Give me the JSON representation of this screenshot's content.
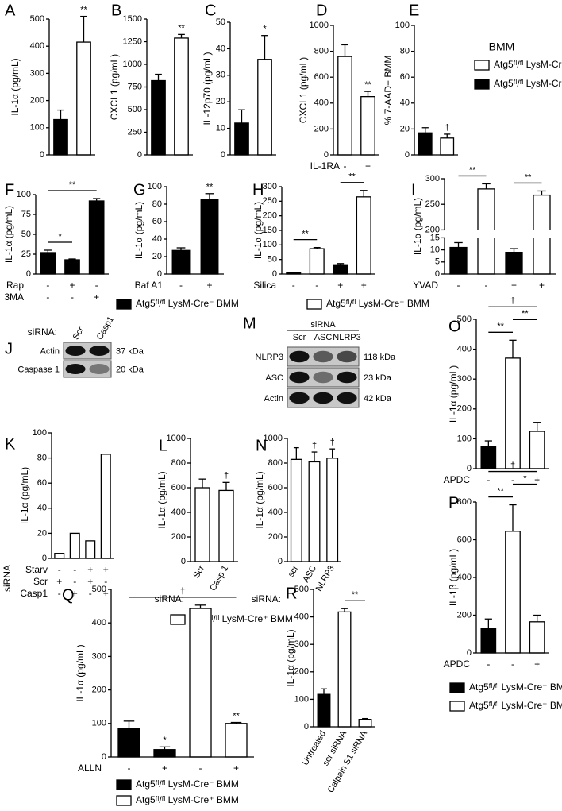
{
  "chart_data": [
    {
      "type": "bar",
      "panel": "A",
      "ylabel": "IL-1α (pg/mL)",
      "ylim": [
        0,
        500
      ],
      "yticks": [
        0,
        100,
        200,
        300,
        400,
        500
      ],
      "bars": [
        {
          "value": 130,
          "error": 35,
          "color": "#000000"
        },
        {
          "value": 415,
          "error": 95,
          "color": "#ffffff",
          "label": "**"
        }
      ]
    },
    {
      "type": "bar",
      "panel": "B",
      "ylabel": "CXCL1 (pg/mL)",
      "ylim": [
        0,
        1500
      ],
      "yticks": [
        0,
        250,
        500,
        750,
        1000,
        1250,
        1500
      ],
      "bars": [
        {
          "value": 820,
          "error": 70,
          "color": "#000000"
        },
        {
          "value": 1290,
          "error": 40,
          "color": "#ffffff",
          "label": "**"
        }
      ]
    },
    {
      "type": "bar",
      "panel": "C",
      "ylabel": "IL-12p70 (pg/mL)",
      "ylim": [
        0,
        50
      ],
      "yticks": [
        0,
        10,
        20,
        30,
        40,
        50
      ],
      "bars": [
        {
          "value": 12,
          "error": 5,
          "color": "#000000"
        },
        {
          "value": 36,
          "error": 9,
          "color": "#ffffff",
          "label": "*"
        }
      ]
    },
    {
      "type": "bar",
      "panel": "D",
      "ylabel": "CXCL1 (pg/mL)",
      "ylim": [
        0,
        1000
      ],
      "yticks": [
        0,
        200,
        400,
        600,
        800,
        1000
      ],
      "bars": [
        {
          "value": 760,
          "error": 90,
          "color": "#ffffff"
        },
        {
          "value": 450,
          "error": 40,
          "color": "#ffffff",
          "label": "**"
        }
      ],
      "conditions": [
        {
          "label": "IL-1RA",
          "signs": [
            "-",
            "+"
          ]
        }
      ]
    },
    {
      "type": "bar",
      "panel": "E",
      "ylabel": "% 7-AAD+ BMM",
      "ylim": [
        0,
        100
      ],
      "yticks": [
        0,
        20,
        40,
        60,
        80,
        100
      ],
      "bars": [
        {
          "value": 17,
          "error": 4,
          "color": "#000000"
        },
        {
          "value": 13,
          "error": 3,
          "color": "#ffffff",
          "label": "†"
        }
      ]
    },
    {
      "type": "legend",
      "title": "BMM",
      "entries": [
        {
          "name": "Atg5ᶠˡ/ᶠˡ LysM-Cre⁺",
          "color": "#ffffff"
        },
        {
          "name": "Atg5ᶠˡ/ᶠˡ LysM-Cre⁻",
          "color": "#000000"
        }
      ]
    },
    {
      "type": "bar",
      "panel": "F",
      "ylabel": "IL-1α (pg/mL)",
      "ylim": [
        0,
        100
      ],
      "yticks": [
        0,
        25,
        50,
        75,
        100
      ],
      "bars": [
        {
          "value": 27,
          "error": 3,
          "color": "#000000"
        },
        {
          "value": 18,
          "error": 1,
          "color": "#000000"
        },
        {
          "value": 92,
          "error": 3,
          "color": "#000000"
        }
      ],
      "brackets": [
        {
          "between": [
            0,
            1
          ],
          "text": "*"
        },
        {
          "between": [
            0,
            2
          ],
          "text": "**"
        }
      ],
      "conditions": [
        {
          "label": "Rap",
          "signs": [
            "-",
            "+",
            "-"
          ]
        },
        {
          "label": "3MA",
          "signs": [
            "-",
            "-",
            "+"
          ]
        }
      ]
    },
    {
      "type": "bar",
      "panel": "G",
      "ylabel": "IL-1α (pg/mL)",
      "ylim": [
        0,
        100
      ],
      "yticks": [
        0,
        20,
        40,
        60,
        80,
        100
      ],
      "bars": [
        {
          "value": 27,
          "error": 3,
          "color": "#000000"
        },
        {
          "value": 85,
          "error": 7,
          "color": "#000000",
          "label": "**"
        }
      ],
      "conditions": [
        {
          "label": "Baf A1",
          "signs": [
            "-",
            "+"
          ]
        }
      ]
    },
    {
      "type": "bar",
      "panel": "H",
      "ylabel": "IL-1α (pg/mL)",
      "ylim": [
        0,
        300
      ],
      "yticks": [
        0,
        50,
        100,
        150,
        200,
        250,
        300
      ],
      "bars": [
        {
          "value": 5,
          "error": 1,
          "color": "#000000"
        },
        {
          "value": 87,
          "error": 4,
          "color": "#ffffff"
        },
        {
          "value": 32,
          "error": 4,
          "color": "#000000"
        },
        {
          "value": 265,
          "error": 22,
          "color": "#ffffff"
        }
      ],
      "brackets": [
        {
          "between": [
            0,
            1
          ],
          "text": "**"
        },
        {
          "between": [
            2,
            3
          ],
          "text": "**"
        }
      ],
      "conditions": [
        {
          "label": "Silica",
          "signs": [
            "-",
            "-",
            "+",
            "+"
          ]
        }
      ]
    },
    {
      "type": "bar",
      "panel": "I",
      "ylabel": "IL-1α (pg/mL)",
      "ylim": [
        0,
        300
      ],
      "yticks": [
        0,
        5,
        10,
        15,
        200,
        250,
        300
      ],
      "broken_axis": true,
      "bars": [
        {
          "value": 11,
          "error": 2,
          "color": "#000000"
        },
        {
          "value": 280,
          "error": 10,
          "color": "#ffffff"
        },
        {
          "value": 9,
          "error": 1.5,
          "color": "#000000"
        },
        {
          "value": 268,
          "error": 8,
          "color": "#ffffff"
        }
      ],
      "brackets": [
        {
          "between": [
            0,
            1
          ],
          "text": "**"
        },
        {
          "between": [
            2,
            3
          ],
          "text": "**"
        }
      ],
      "conditions": [
        {
          "label": "YVAD",
          "signs": [
            "-",
            "-",
            "+",
            "+"
          ]
        }
      ]
    },
    {
      "type": "legend",
      "entries": [
        {
          "name": "Atg5ᶠˡ/ᶠˡ LysM-Cre⁻ BMM",
          "color": "#000000"
        },
        {
          "name": "Atg5ᶠˡ/ᶠˡ LysM-Cre⁺ BMM",
          "color": "#ffffff"
        }
      ]
    },
    {
      "type": "blot",
      "panel": "J",
      "lane_label": "siRNA:",
      "lanes": [
        "Scr",
        "Casp1"
      ],
      "rows": [
        {
          "name": "Actin",
          "size": "37 kDa"
        },
        {
          "name": "Caspase 1",
          "size": "20 kDa"
        }
      ]
    },
    {
      "type": "blot",
      "panel": "M",
      "lane_label": "siRNA",
      "lanes": [
        "Scr",
        "ASC",
        "NLRP3"
      ],
      "rows": [
        {
          "name": "NLRP3",
          "size": "118 kDa"
        },
        {
          "name": "ASC",
          "size": "23 kDa"
        },
        {
          "name": "Actin",
          "size": "42 kDa"
        }
      ]
    },
    {
      "type": "bar",
      "panel": "O",
      "ylabel": "IL-1α (pg/mL)",
      "ylim": [
        0,
        500
      ],
      "yticks": [
        0,
        100,
        200,
        300,
        400,
        500
      ],
      "bars": [
        {
          "value": 75,
          "error": 18,
          "color": "#000000"
        },
        {
          "value": 370,
          "error": 60,
          "color": "#ffffff"
        },
        {
          "value": 125,
          "error": 30,
          "color": "#ffffff"
        }
      ],
      "brackets": [
        {
          "between": [
            0,
            1
          ],
          "text": "**"
        },
        {
          "between": [
            1,
            2
          ],
          "text": "**"
        },
        {
          "between": [
            0,
            2
          ],
          "text": "†"
        }
      ],
      "conditions": [
        {
          "label": "APDC",
          "signs": [
            "-",
            "-",
            "+"
          ]
        }
      ]
    },
    {
      "type": "bar",
      "panel": "K",
      "ylabel": "IL-1α (pg/mL)",
      "ylim": [
        0,
        100
      ],
      "yticks": [
        0,
        20,
        40,
        60,
        80,
        100
      ],
      "side_label": "siRNA",
      "bars": [
        {
          "value": 4,
          "color": "#ffffff"
        },
        {
          "value": 20,
          "color": "#ffffff"
        },
        {
          "value": 14,
          "color": "#ffffff"
        },
        {
          "value": 83,
          "color": "#ffffff"
        }
      ],
      "conditions": [
        {
          "label": "Starv",
          "signs": [
            "-",
            "-",
            "+",
            "+"
          ]
        },
        {
          "label": "Scr",
          "signs": [
            "+",
            "-",
            "+",
            "-"
          ]
        },
        {
          "label": "Casp1",
          "signs": [
            "-",
            "+",
            "-",
            "+"
          ]
        }
      ]
    },
    {
      "type": "bar",
      "panel": "L",
      "ylabel": "IL-1α  (pg/mL)",
      "ylim": [
        0,
        1000
      ],
      "yticks": [
        0,
        200,
        400,
        600,
        800,
        1000
      ],
      "bars": [
        {
          "value": 600,
          "error": 70,
          "color": "#ffffff"
        },
        {
          "value": 578,
          "error": 65,
          "color": "#ffffff",
          "label": "†"
        }
      ],
      "category_label": "siRNA:",
      "categories": [
        "Scr",
        "Casp 1"
      ]
    },
    {
      "type": "bar",
      "panel": "N",
      "ylabel": "IL-1α  (pg/mL)",
      "ylim": [
        0,
        1000
      ],
      "yticks": [
        0,
        200,
        400,
        600,
        800,
        1000
      ],
      "bars": [
        {
          "value": 830,
          "error": 95,
          "color": "#ffffff"
        },
        {
          "value": 810,
          "error": 80,
          "color": "#ffffff",
          "label": "†"
        },
        {
          "value": 840,
          "error": 75,
          "color": "#ffffff",
          "label": "†"
        }
      ],
      "category_label": "siRNA:",
      "categories": [
        "scr",
        "ASC",
        "NLRP3"
      ]
    },
    {
      "type": "legend",
      "entries": [
        {
          "name": "Atg5ᶠˡ/ᶠˡ LysM-Cre⁺ BMM",
          "color": "#ffffff"
        }
      ]
    },
    {
      "type": "bar",
      "panel": "P",
      "ylabel": "IL-1β (pg/mL)",
      "ylim": [
        0,
        800
      ],
      "yticks": [
        0,
        200,
        400,
        600,
        800
      ],
      "bars": [
        {
          "value": 130,
          "error": 50,
          "color": "#000000"
        },
        {
          "value": 645,
          "error": 140,
          "color": "#ffffff"
        },
        {
          "value": 165,
          "error": 35,
          "color": "#ffffff"
        }
      ],
      "brackets": [
        {
          "between": [
            0,
            1
          ],
          "text": "**"
        },
        {
          "between": [
            1,
            2
          ],
          "text": "*"
        },
        {
          "between": [
            0,
            2
          ],
          "text": "†"
        }
      ],
      "conditions": [
        {
          "label": "APDC",
          "signs": [
            "-",
            "-",
            "+"
          ]
        }
      ]
    },
    {
      "type": "legend",
      "entries": [
        {
          "name": "Atg5ᶠˡ/ᶠˡ LysM-Cre⁻ BMM",
          "color": "#000000"
        },
        {
          "name": "Atg5ᶠˡ/ᶠˡ LysM-Cre⁺ BMM",
          "color": "#ffffff"
        }
      ]
    },
    {
      "type": "bar",
      "panel": "Q",
      "ylabel": "IL-1α (pg/mL)",
      "ylim": [
        0,
        500
      ],
      "yticks": [
        0,
        100,
        200,
        300,
        400,
        500
      ],
      "bars": [
        {
          "value": 85,
          "error": 22,
          "color": "#000000"
        },
        {
          "value": 22,
          "error": 8,
          "color": "#000000",
          "label": "*"
        },
        {
          "value": 443,
          "error": 10,
          "color": "#ffffff"
        },
        {
          "value": 100,
          "error": 3,
          "color": "#ffffff",
          "label": "**"
        }
      ],
      "brackets": [
        {
          "between": [
            0,
            3
          ],
          "text": "†"
        }
      ],
      "conditions": [
        {
          "label": "ALLN",
          "signs": [
            "-",
            "+",
            "-",
            "+"
          ]
        }
      ]
    },
    {
      "type": "legend",
      "entries": [
        {
          "name": "Atg5ᶠˡ/ᶠˡ LysM-Cre⁻ BMM",
          "color": "#000000"
        },
        {
          "name": "Atg5ᶠˡ/ᶠˡ LysM-Cre⁺ BMM",
          "color": "#ffffff"
        }
      ]
    },
    {
      "type": "bar",
      "panel": "R",
      "ylabel": "IL-1α (pg/mL)",
      "ylim": [
        0,
        500
      ],
      "yticks": [
        0,
        100,
        200,
        300,
        400,
        500
      ],
      "bars": [
        {
          "value": 118,
          "error": 20,
          "color": "#000000"
        },
        {
          "value": 418,
          "error": 12,
          "color": "#ffffff"
        },
        {
          "value": 27,
          "error": 3,
          "color": "#ffffff"
        }
      ],
      "brackets": [
        {
          "between": [
            1,
            2
          ],
          "text": "**"
        }
      ],
      "categories": [
        "Untreated",
        "scr siRNA",
        "Calpain S1 siRNA"
      ]
    }
  ]
}
